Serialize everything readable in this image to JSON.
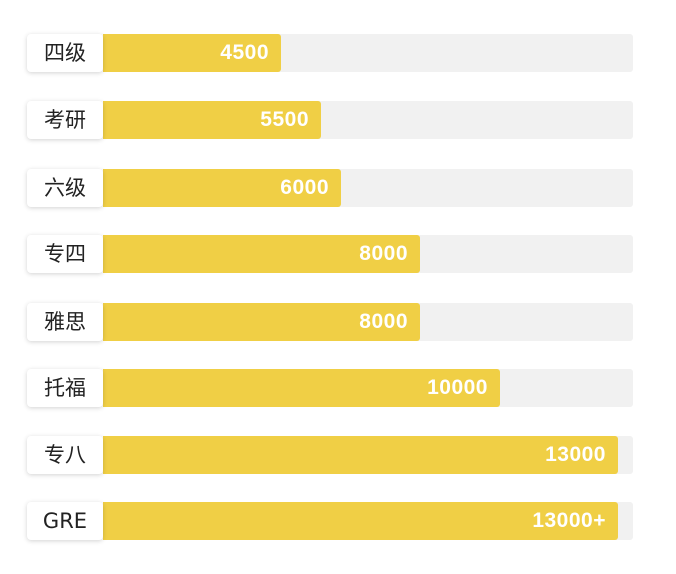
{
  "chart_data": {
    "type": "bar",
    "orientation": "horizontal",
    "categories": [
      "四级",
      "考研",
      "六级",
      "专四",
      "雅思",
      "托福",
      "专八",
      "GRE"
    ],
    "values": [
      4500,
      5500,
      6000,
      8000,
      8000,
      10000,
      13000,
      13000
    ],
    "value_labels": [
      "4500",
      "5500",
      "6000",
      "8000",
      "8000",
      "10000",
      "13000",
      "13000+"
    ],
    "xlim": [
      0,
      13500
    ],
    "grid": false,
    "legend": "none",
    "colors": {
      "bar": "#f0cf45",
      "track": "#f1f1f1",
      "value_text": "#ffffff",
      "label_text": "#222222"
    }
  }
}
